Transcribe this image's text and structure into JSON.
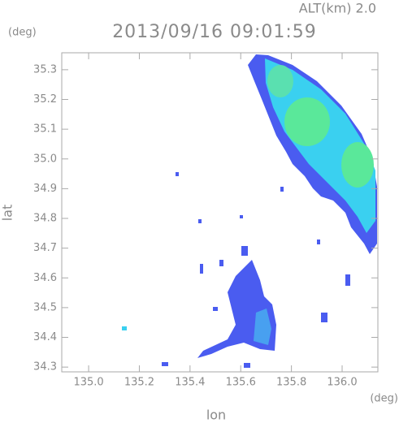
{
  "chart_data": {
    "type": "map",
    "title": "2013/09/16 09:01:59",
    "annotation": "ALT(km) 2.0",
    "x_label": "lon",
    "y_label": "lat",
    "x_unit": "(deg)",
    "y_unit": "(deg)",
    "xlim": [
      134.894,
      136.141
    ],
    "ylim": [
      34.284,
      35.357
    ],
    "xticks": [
      {
        "value": 135.0,
        "label": "135.0"
      },
      135.2,
      135.4,
      135.6,
      135.8,
      {
        "value": 136.0,
        "label": "136.0"
      }
    ],
    "yticks": [
      34.3,
      34.4,
      34.5,
      34.6,
      34.7,
      34.8,
      34.9,
      {
        "value": 35.0,
        "label": "35.0"
      },
      35.1,
      35.2,
      35.3
    ],
    "grid": false
  }
}
